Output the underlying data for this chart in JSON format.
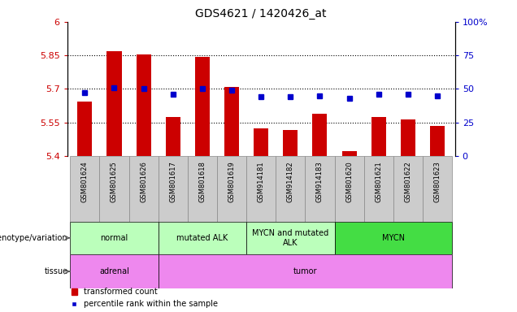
{
  "title": "GDS4621 / 1420426_at",
  "samples": [
    "GSM801624",
    "GSM801625",
    "GSM801626",
    "GSM801617",
    "GSM801618",
    "GSM801619",
    "GSM914181",
    "GSM914182",
    "GSM914183",
    "GSM801620",
    "GSM801621",
    "GSM801622",
    "GSM801623"
  ],
  "bar_values": [
    5.645,
    5.87,
    5.855,
    5.575,
    5.845,
    5.71,
    5.525,
    5.515,
    5.59,
    5.42,
    5.575,
    5.565,
    5.535
  ],
  "dot_values": [
    47,
    51,
    50,
    46,
    50,
    49,
    44,
    44,
    45,
    43,
    46,
    46,
    45
  ],
  "ylim_left": [
    5.4,
    6.0
  ],
  "ylim_right": [
    0,
    100
  ],
  "yticks_left": [
    5.4,
    5.55,
    5.7,
    5.85,
    6.0
  ],
  "ytick_labels_left": [
    "5.4",
    "5.55",
    "5.7",
    "5.85",
    "6"
  ],
  "yticks_right": [
    0,
    25,
    50,
    75,
    100
  ],
  "ytick_labels_right": [
    "0",
    "25",
    "50",
    "75",
    "100%"
  ],
  "hlines": [
    5.55,
    5.7,
    5.85
  ],
  "bar_color": "#cc0000",
  "dot_color": "#0000cc",
  "bar_width": 0.5,
  "groups": [
    {
      "label": "normal",
      "start": 0,
      "end": 2,
      "color": "#bbffbb"
    },
    {
      "label": "mutated ALK",
      "start": 3,
      "end": 5,
      "color": "#bbffbb"
    },
    {
      "label": "MYCN and mutated\nALK",
      "start": 6,
      "end": 8,
      "color": "#bbffbb"
    },
    {
      "label": "MYCN",
      "start": 9,
      "end": 12,
      "color": "#44dd44"
    }
  ],
  "tissues": [
    {
      "label": "adrenal",
      "start": 0,
      "end": 2,
      "color": "#ee88ee"
    },
    {
      "label": "tumor",
      "start": 3,
      "end": 12,
      "color": "#ee88ee"
    }
  ],
  "genotype_label": "genotype/variation",
  "tissue_label": "tissue",
  "legend_bar": "transformed count",
  "legend_dot": "percentile rank within the sample",
  "tick_color_left": "#cc0000",
  "tick_color_right": "#0000cc",
  "sample_box_color": "#cccccc",
  "sample_box_edge": "#888888"
}
